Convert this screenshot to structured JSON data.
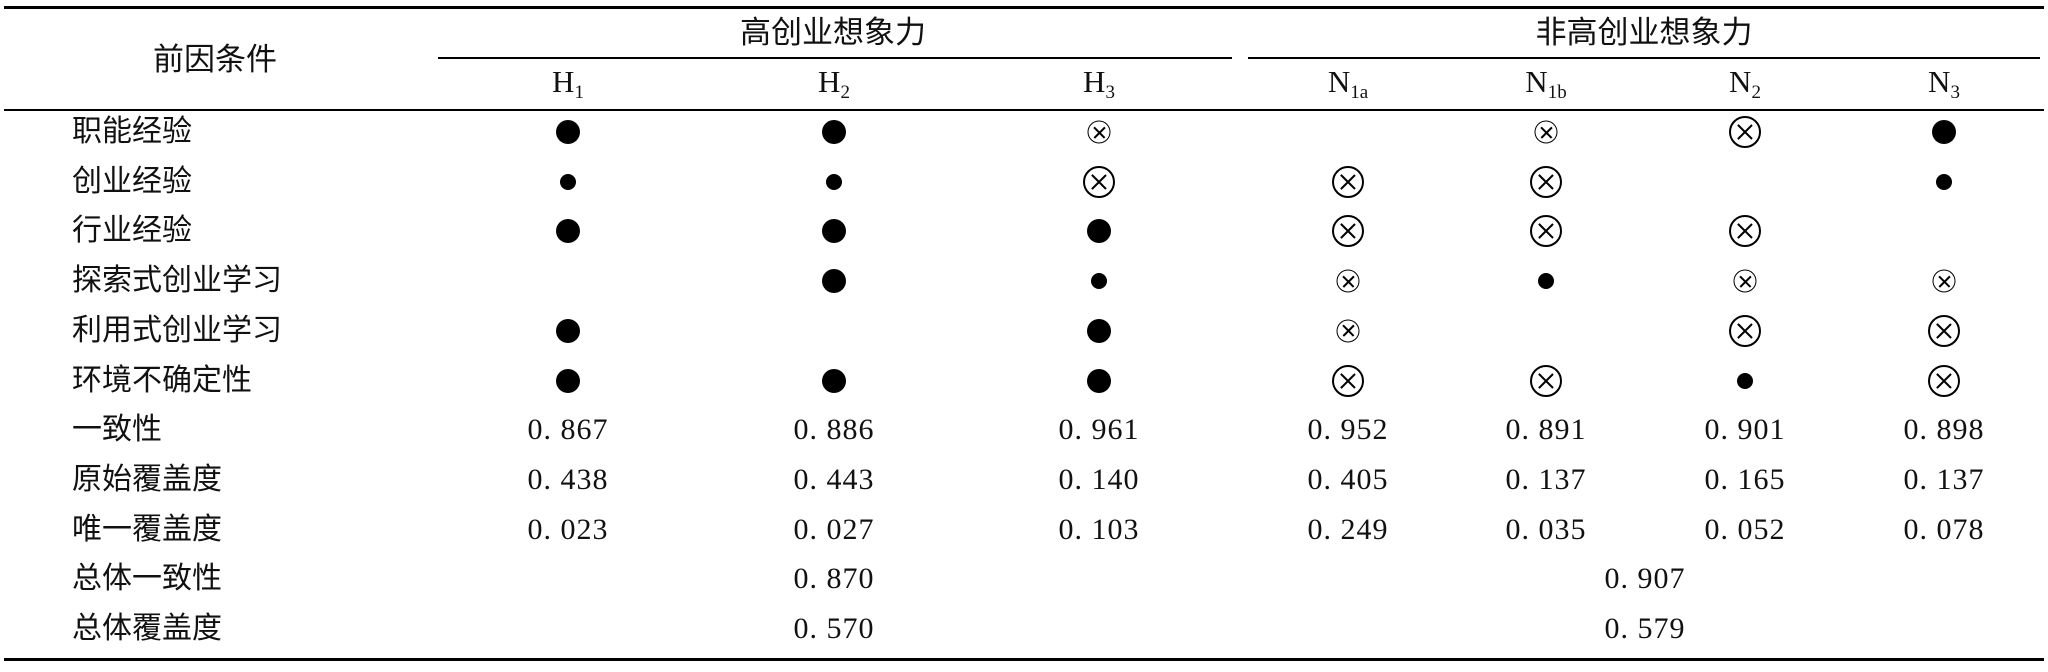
{
  "table": {
    "corner_header": "前因条件",
    "group_headers": [
      "高创业想象力",
      "非高创业想象力"
    ],
    "columns": [
      {
        "base": "H",
        "sub": "1"
      },
      {
        "base": "H",
        "sub": "2"
      },
      {
        "base": "H",
        "sub": "3"
      },
      {
        "base": "N",
        "sub": "1a"
      },
      {
        "base": "N",
        "sub": "1b"
      },
      {
        "base": "N",
        "sub": "2"
      },
      {
        "base": "N",
        "sub": "3"
      }
    ],
    "legend_symbols": {
      "core_present": "large-black-dot-icon",
      "peripheral_present": "small-black-dot-icon",
      "core_absent": "large-circled-cross-icon",
      "peripheral_absent": "small-circled-cross-icon",
      "blank": "absent-or-present"
    },
    "condition_rows": [
      {
        "label": "职能经验",
        "cells": [
          "core_present",
          "core_present",
          "peripheral_absent",
          "blank",
          "peripheral_absent",
          "core_absent",
          "core_present"
        ]
      },
      {
        "label": "创业经验",
        "cells": [
          "peripheral_present",
          "peripheral_present",
          "core_absent",
          "core_absent",
          "core_absent",
          "blank",
          "peripheral_present"
        ]
      },
      {
        "label": "行业经验",
        "cells": [
          "core_present",
          "core_present",
          "core_present",
          "core_absent",
          "core_absent",
          "core_absent",
          "blank"
        ]
      },
      {
        "label": "探索式创业学习",
        "cells": [
          "blank",
          "core_present",
          "peripheral_present",
          "peripheral_absent",
          "peripheral_present",
          "peripheral_absent",
          "peripheral_absent"
        ]
      },
      {
        "label": "利用式创业学习",
        "cells": [
          "core_present",
          "blank",
          "core_present",
          "peripheral_absent",
          "blank",
          "core_absent",
          "core_absent"
        ]
      },
      {
        "label": "环境不确定性",
        "cells": [
          "core_present",
          "core_present",
          "core_present",
          "core_absent",
          "core_absent",
          "peripheral_present",
          "core_absent"
        ]
      }
    ],
    "stat_rows": [
      {
        "label": "一致性",
        "values": [
          "0. 867",
          "0. 886",
          "0. 961",
          "0. 952",
          "0. 891",
          "0. 901",
          "0. 898"
        ]
      },
      {
        "label": "原始覆盖度",
        "values": [
          "0. 438",
          "0. 443",
          "0. 140",
          "0. 405",
          "0. 137",
          "0. 165",
          "0. 137"
        ]
      },
      {
        "label": "唯一覆盖度",
        "values": [
          "0. 023",
          "0. 027",
          "0. 103",
          "0. 249",
          "0. 035",
          "0. 052",
          "0. 078"
        ]
      }
    ],
    "overall_rows": [
      {
        "label": "总体一致性",
        "high": "0. 870",
        "non_high": "0. 907"
      },
      {
        "label": "总体覆盖度",
        "high": "0. 570",
        "non_high": "0. 579"
      }
    ]
  }
}
